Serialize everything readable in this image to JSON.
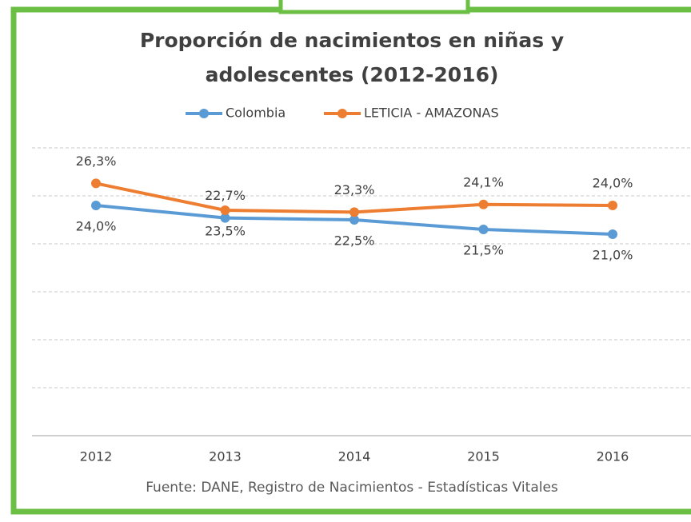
{
  "chart_data": {
    "type": "line",
    "title": [
      "Proporción de nacimientos en niñas y",
      "adolescentes (2012-2016)"
    ],
    "categories": [
      "2012",
      "2013",
      "2014",
      "2015",
      "2016"
    ],
    "series": [
      {
        "name": "Colombia",
        "color": "#5b9bd5",
        "values": [
          24.0,
          22.7,
          22.5,
          21.5,
          21.0
        ],
        "value_labels": [
          "24,0%",
          "22,7%",
          "22,5%",
          "21,5%",
          "21,0%"
        ]
      },
      {
        "name": "LETICIA - AMAZONAS",
        "color": "#ed7d31",
        "values": [
          26.3,
          23.5,
          23.3,
          24.1,
          24.0
        ],
        "value_labels": [
          "26,3%",
          "23,5%",
          "23,3%",
          "24,1%",
          "24,0%"
        ]
      }
    ],
    "ylim": [
      0,
      30
    ],
    "yticks": [
      0,
      5,
      10,
      15,
      20,
      25,
      30
    ],
    "grid": true,
    "legend": "top",
    "source": "Fuente: DANE, Registro de Nacimientos - Estadísticas Vitales"
  }
}
